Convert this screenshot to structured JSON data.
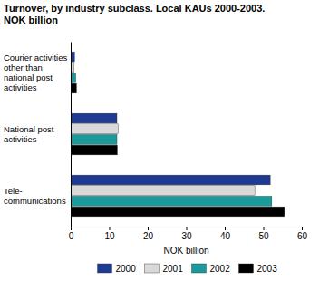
{
  "chart_data": {
    "type": "bar",
    "orientation": "horizontal",
    "title": "Turnover, by industry subclass. Local KAUs 2000-2003. NOK billion",
    "categories": [
      "Courier activities other than national post activities",
      "National post activities",
      "Tele-communications"
    ],
    "series": [
      {
        "name": "2000",
        "color": "#1f3a93",
        "values": [
          1.0,
          12.0,
          51.8
        ]
      },
      {
        "name": "2001",
        "color": "#d9d9d9",
        "values": [
          0.9,
          12.3,
          47.8
        ]
      },
      {
        "name": "2002",
        "color": "#1a9a9a",
        "values": [
          1.3,
          12.0,
          52.2
        ]
      },
      {
        "name": "2003",
        "color": "#000000",
        "values": [
          1.5,
          12.1,
          55.5
        ]
      }
    ],
    "x_label": "NOK billion",
    "xlim": [
      0,
      60
    ],
    "xticks": [
      0,
      10,
      20,
      30,
      40,
      50,
      60
    ],
    "grid": false,
    "legend": "bottom"
  }
}
